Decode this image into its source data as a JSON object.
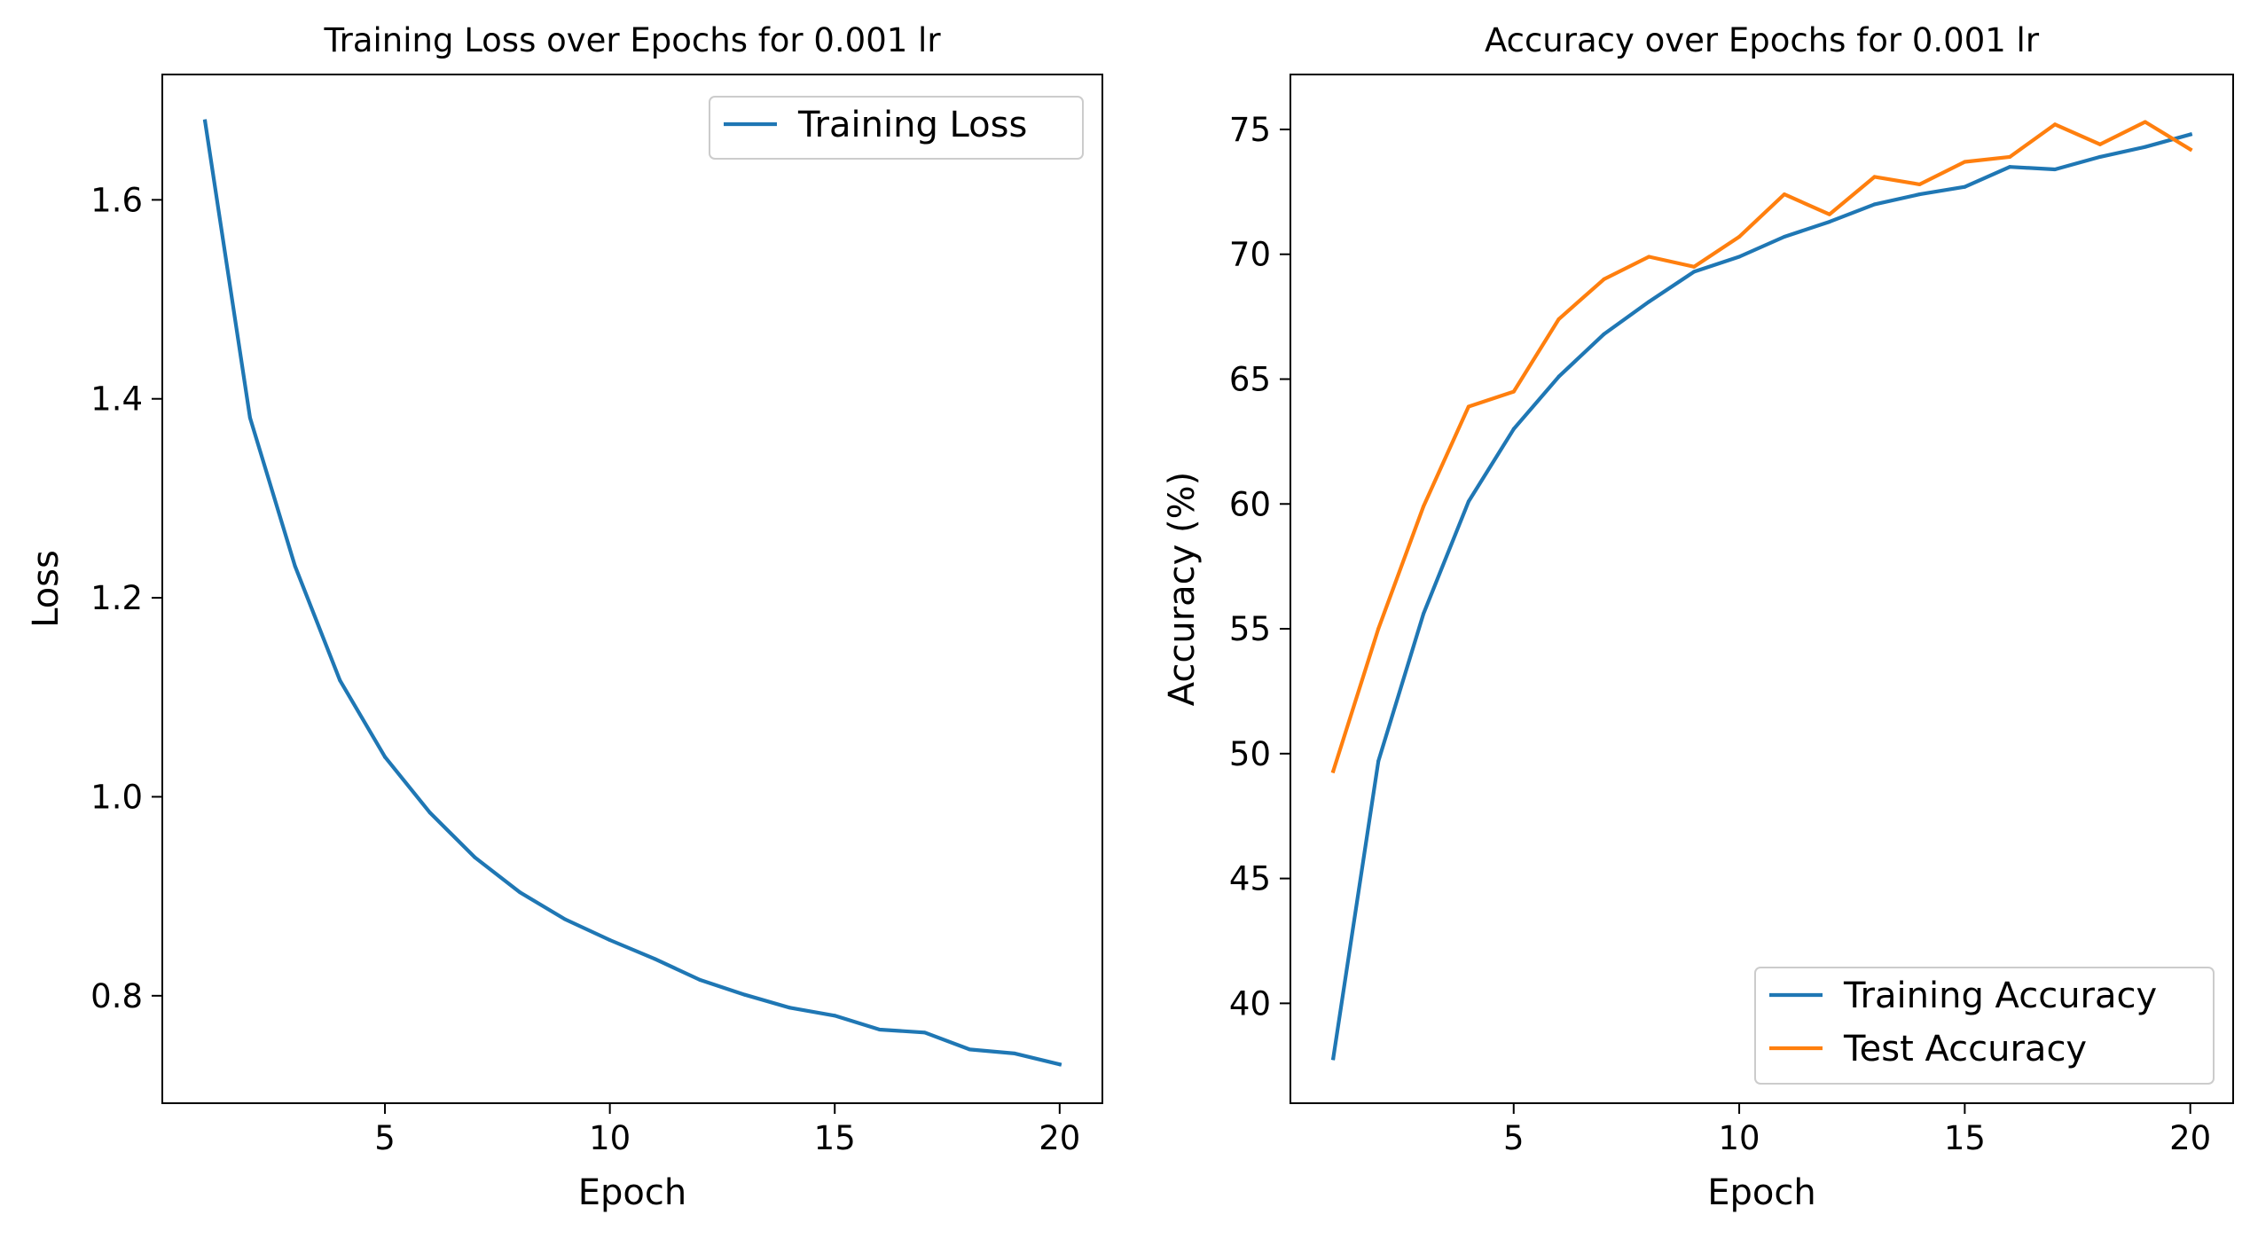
{
  "chart_data": [
    {
      "type": "line",
      "title": "Training Loss over Epochs for 0.001 lr",
      "xlabel": "Epoch",
      "ylabel": "Loss",
      "xlim": [
        0.05,
        20.95
      ],
      "ylim": [
        0.692,
        1.726
      ],
      "xticks": [
        5,
        10,
        15,
        20
      ],
      "yticks": [
        0.8,
        1.0,
        1.2,
        1.4,
        1.6
      ],
      "ytick_labels": [
        "0.8",
        "1.0",
        "1.2",
        "1.4",
        "1.6"
      ],
      "grid": false,
      "legend_position": "upper right",
      "x": [
        1,
        2,
        3,
        4,
        5,
        6,
        7,
        8,
        9,
        10,
        11,
        12,
        13,
        14,
        15,
        16,
        17,
        18,
        19,
        20
      ],
      "series": [
        {
          "name": "Training Loss",
          "color": "#1f77b4",
          "values": [
            1.679,
            1.381,
            1.232,
            1.117,
            1.04,
            0.984,
            0.939,
            0.904,
            0.877,
            0.856,
            0.837,
            0.816,
            0.801,
            0.788,
            0.78,
            0.766,
            0.763,
            0.746,
            0.742,
            0.731
          ]
        }
      ]
    },
    {
      "type": "line",
      "title": "Accuracy over Epochs for 0.001 lr",
      "xlabel": "Epoch",
      "ylabel": "Accuracy (%)",
      "xlim": [
        0.05,
        20.95
      ],
      "ylim": [
        36.0,
        77.2
      ],
      "xticks": [
        5,
        10,
        15,
        20
      ],
      "yticks": [
        40,
        45,
        50,
        55,
        60,
        65,
        70,
        75
      ],
      "ytick_labels": [
        "40",
        "45",
        "50",
        "55",
        "60",
        "65",
        "70",
        "75"
      ],
      "grid": false,
      "legend_position": "lower right",
      "x": [
        1,
        2,
        3,
        4,
        5,
        6,
        7,
        8,
        9,
        10,
        11,
        12,
        13,
        14,
        15,
        16,
        17,
        18,
        19,
        20
      ],
      "series": [
        {
          "name": "Training Accuracy",
          "color": "#1f77b4",
          "values": [
            37.8,
            49.7,
            55.6,
            60.1,
            63.0,
            65.1,
            66.8,
            68.1,
            69.3,
            69.9,
            70.7,
            71.3,
            72.0,
            72.4,
            72.7,
            73.5,
            73.4,
            73.9,
            74.3,
            74.8
          ]
        },
        {
          "name": "Test Accuracy",
          "color": "#ff7f0e",
          "values": [
            49.3,
            55.0,
            59.9,
            63.9,
            64.5,
            67.4,
            69.0,
            69.9,
            69.5,
            70.7,
            72.4,
            71.6,
            73.1,
            72.8,
            73.7,
            73.9,
            75.2,
            74.4,
            75.3,
            74.2
          ]
        }
      ]
    }
  ]
}
